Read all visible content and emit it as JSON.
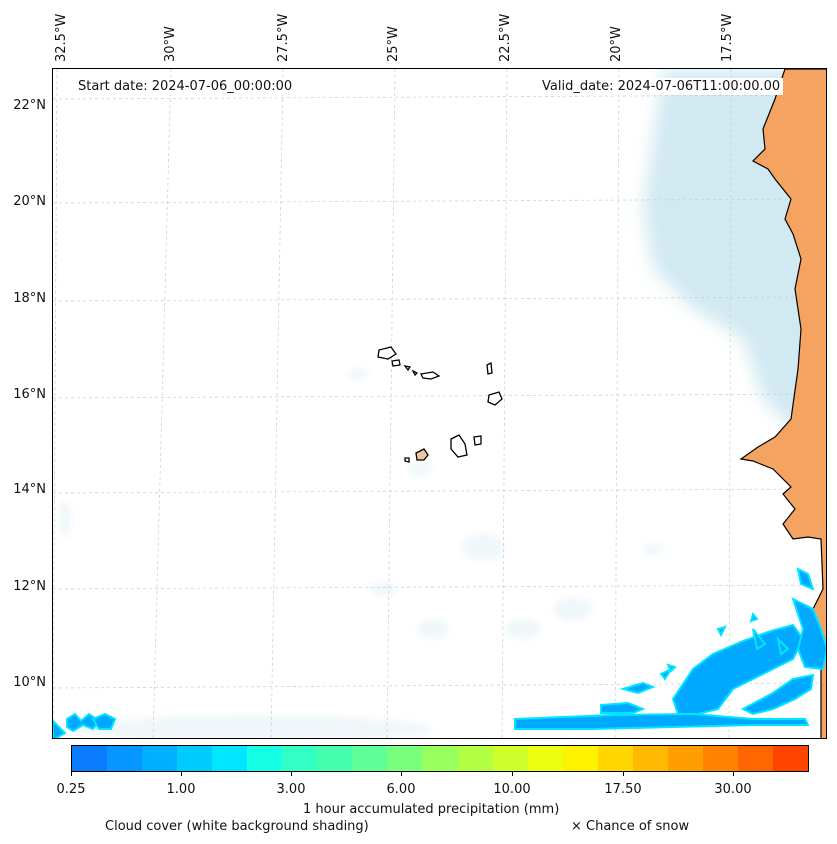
{
  "map": {
    "start_date": "Start date: 2024-07-06_00:00:00",
    "valid_date": "Valid_date: 2024-07-06T11:00:00.00",
    "lon_labels": [
      "32.5°W",
      "30°W",
      "27.5°W",
      "25°W",
      "22.5°W",
      "20°W",
      "17.5°W"
    ],
    "lat_labels": [
      "22°N",
      "20°N",
      "18°N",
      "16°N",
      "14°N",
      "12°N",
      "10°N"
    ]
  },
  "colorbar": {
    "colors": [
      "#0a7dff",
      "#0596ff",
      "#00b0ff",
      "#00cbff",
      "#00e6ff",
      "#14ffe3",
      "#32ffc4",
      "#45ffae",
      "#5dff96",
      "#78ff7c",
      "#97ff5e",
      "#b3ff44",
      "#cfff2a",
      "#ebff0e",
      "#fff200",
      "#ffd600",
      "#ffb900",
      "#ff9e00",
      "#ff8200",
      "#ff6500",
      "#ff4400"
    ],
    "tick_labels": [
      "0.25",
      "1.00",
      "3.00",
      "6.00",
      "10.00",
      "17.50",
      "30.00"
    ],
    "label": "1 hour accumulated precipitation (mm)"
  },
  "legend": {
    "cloud_note": "Cloud cover (white background shading)",
    "snow_note": "× Chance of snow"
  },
  "colors": {
    "land": "#f4a460",
    "cloud": "#add8e6",
    "precip": "#00a8ff"
  }
}
